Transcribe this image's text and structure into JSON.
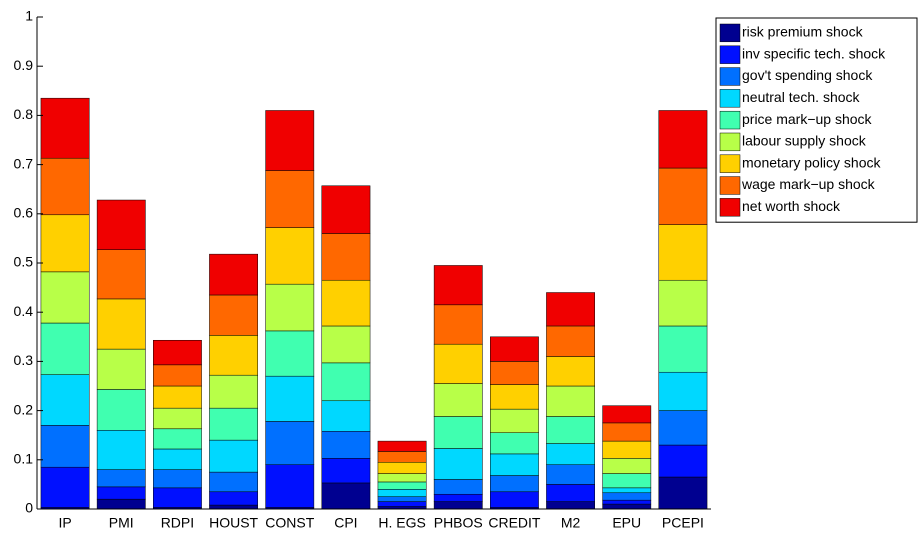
{
  "chart_data": {
    "type": "stacked_bar",
    "categories": [
      "IP",
      "PMI",
      "RDPI",
      "HOUST",
      "CONST",
      "CPI",
      "H. EGS",
      "PHBOS",
      "CREDIT",
      "M2",
      "EPU",
      "PCEPI"
    ],
    "series": [
      {
        "name": "risk premium shock",
        "color": "#000090",
        "values": [
          0.003,
          0.02,
          0.003,
          0.008,
          0.003,
          0.053,
          0.005,
          0.015,
          0.003,
          0.015,
          0.01,
          0.065
        ]
      },
      {
        "name": "inv specific tech. shock",
        "color": "#0010ff",
        "values": [
          0.082,
          0.025,
          0.04,
          0.027,
          0.087,
          0.05,
          0.01,
          0.015,
          0.032,
          0.035,
          0.008,
          0.065
        ]
      },
      {
        "name": "gov't spending shock",
        "color": "#0070ff",
        "values": [
          0.085,
          0.035,
          0.037,
          0.04,
          0.088,
          0.055,
          0.01,
          0.03,
          0.033,
          0.04,
          0.015,
          0.07
        ]
      },
      {
        "name": "neutral tech. shock",
        "color": "#00d8ff",
        "values": [
          0.103,
          0.08,
          0.042,
          0.065,
          0.092,
          0.062,
          0.015,
          0.063,
          0.044,
          0.043,
          0.01,
          0.078
        ]
      },
      {
        "name": "price mark−up shock",
        "color": "#40ffb0",
        "values": [
          0.105,
          0.083,
          0.041,
          0.065,
          0.092,
          0.077,
          0.015,
          0.065,
          0.043,
          0.055,
          0.029,
          0.094
        ]
      },
      {
        "name": "labour supply shock",
        "color": "#b8ff48",
        "values": [
          0.104,
          0.082,
          0.042,
          0.067,
          0.095,
          0.075,
          0.017,
          0.067,
          0.048,
          0.062,
          0.031,
          0.093
        ]
      },
      {
        "name": "monetary policy shock",
        "color": "#ffd000",
        "values": [
          0.116,
          0.102,
          0.045,
          0.081,
          0.115,
          0.093,
          0.023,
          0.08,
          0.05,
          0.06,
          0.035,
          0.113
        ]
      },
      {
        "name": "wage mark−up shock",
        "color": "#ff6800",
        "values": [
          0.115,
          0.1,
          0.043,
          0.082,
          0.116,
          0.095,
          0.022,
          0.08,
          0.047,
          0.062,
          0.037,
          0.115
        ]
      },
      {
        "name": "net worth shock",
        "color": "#f00000",
        "values": [
          0.122,
          0.101,
          0.05,
          0.083,
          0.122,
          0.097,
          0.021,
          0.08,
          0.05,
          0.068,
          0.035,
          0.117
        ]
      }
    ],
    "ylim": [
      0,
      1
    ],
    "yticks": [
      0,
      0.1,
      0.2,
      0.3,
      0.4,
      0.5,
      0.6,
      0.7,
      0.8,
      0.9,
      1
    ],
    "legend": "outside-top-right"
  }
}
